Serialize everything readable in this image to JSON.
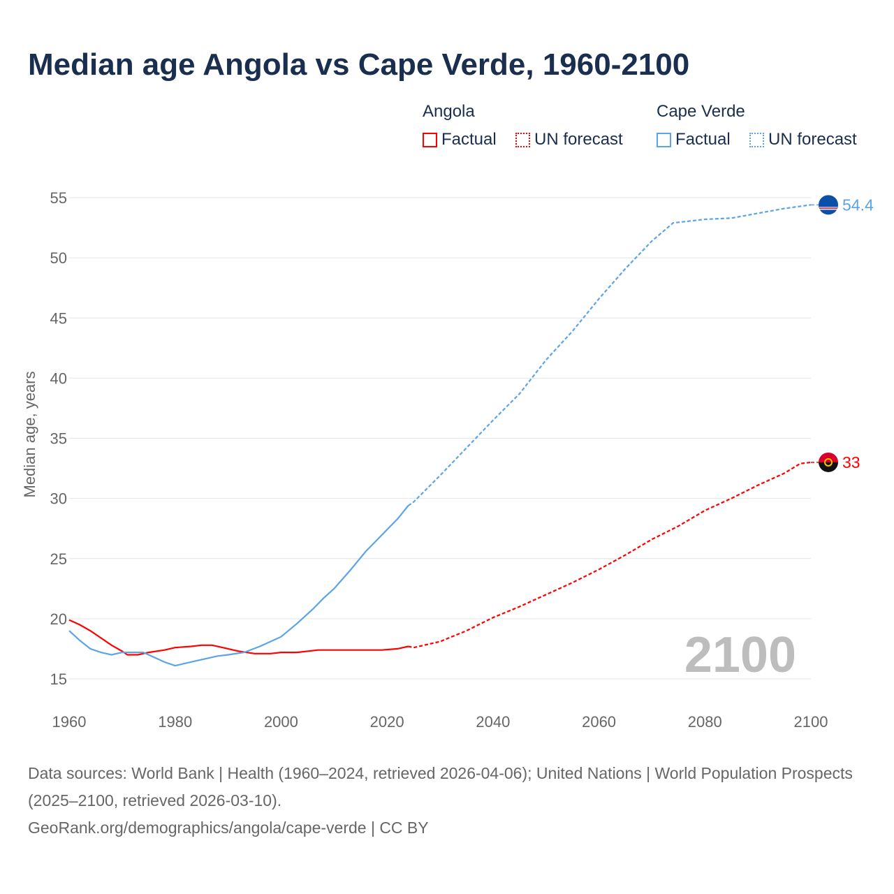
{
  "title": "Median age Angola vs Cape Verde, 1960-2100",
  "legend": {
    "angola": "Angola",
    "cape_verde": "Cape Verde",
    "factual": "Factual",
    "forecast": "UN forecast"
  },
  "year_label": "2100",
  "footer": [
    "Data sources: World Bank | Health (1960–2024, retrieved 2026-04-06); United Nations | World Population Prospects (2025–2100, retrieved 2026-03-10).",
    "GeoRank.org/demographics/angola/cape-verde | CC BY"
  ],
  "chart_data": {
    "type": "line",
    "title": "Median age Angola vs Cape Verde, 1960-2100",
    "xlabel": "",
    "ylabel": "Median age, years",
    "xlim": [
      1960,
      2100
    ],
    "ylim": [
      15,
      55
    ],
    "xticks": [
      1960,
      1980,
      2000,
      2020,
      2040,
      2060,
      2080,
      2100
    ],
    "yticks": [
      15,
      20,
      25,
      30,
      35,
      40,
      45,
      50,
      55
    ],
    "grid": true,
    "legend_position": "top-right",
    "series": [
      {
        "name": "Angola",
        "color": "#ff0000",
        "end_label": "33",
        "factual": [
          [
            1960,
            19.9
          ],
          [
            1962,
            19.5
          ],
          [
            1964,
            19.0
          ],
          [
            1966,
            18.4
          ],
          [
            1968,
            17.8
          ],
          [
            1970,
            17.3
          ],
          [
            1971,
            17.0
          ],
          [
            1973,
            17.0
          ],
          [
            1975,
            17.2
          ],
          [
            1978,
            17.4
          ],
          [
            1980,
            17.6
          ],
          [
            1983,
            17.7
          ],
          [
            1985,
            17.8
          ],
          [
            1987,
            17.8
          ],
          [
            1989,
            17.6
          ],
          [
            1992,
            17.3
          ],
          [
            1995,
            17.1
          ],
          [
            1998,
            17.1
          ],
          [
            2000,
            17.2
          ],
          [
            2003,
            17.2
          ],
          [
            2007,
            17.4
          ],
          [
            2010,
            17.4
          ],
          [
            2015,
            17.4
          ],
          [
            2019,
            17.4
          ],
          [
            2022,
            17.5
          ],
          [
            2024,
            17.7
          ]
        ],
        "forecast": [
          [
            2024,
            17.7
          ],
          [
            2025,
            17.6
          ],
          [
            2030,
            18.1
          ],
          [
            2035,
            19.0
          ],
          [
            2040,
            20.1
          ],
          [
            2045,
            21.0
          ],
          [
            2050,
            22.0
          ],
          [
            2055,
            23.0
          ],
          [
            2060,
            24.1
          ],
          [
            2065,
            25.3
          ],
          [
            2070,
            26.6
          ],
          [
            2075,
            27.7
          ],
          [
            2080,
            29.0
          ],
          [
            2085,
            30.0
          ],
          [
            2090,
            31.1
          ],
          [
            2095,
            32.1
          ],
          [
            2098,
            32.9
          ],
          [
            2100,
            33.0
          ]
        ]
      },
      {
        "name": "Cape Verde",
        "color": "#5ba4e8",
        "end_label": "54.4",
        "factual": [
          [
            1960,
            19.0
          ],
          [
            1962,
            18.2
          ],
          [
            1964,
            17.5
          ],
          [
            1966,
            17.2
          ],
          [
            1968,
            17.0
          ],
          [
            1970,
            17.2
          ],
          [
            1972,
            17.2
          ],
          [
            1974,
            17.2
          ],
          [
            1976,
            16.8
          ],
          [
            1978,
            16.4
          ],
          [
            1980,
            16.1
          ],
          [
            1982,
            16.3
          ],
          [
            1985,
            16.6
          ],
          [
            1988,
            16.9
          ],
          [
            1990,
            17.0
          ],
          [
            1993,
            17.2
          ],
          [
            1996,
            17.7
          ],
          [
            2000,
            18.5
          ],
          [
            2003,
            19.6
          ],
          [
            2006,
            20.8
          ],
          [
            2008,
            21.7
          ],
          [
            2010,
            22.5
          ],
          [
            2013,
            24.0
          ],
          [
            2016,
            25.6
          ],
          [
            2018,
            26.5
          ],
          [
            2020,
            27.4
          ],
          [
            2022,
            28.3
          ],
          [
            2024,
            29.4
          ]
        ],
        "forecast": [
          [
            2024,
            29.4
          ],
          [
            2025,
            29.7
          ],
          [
            2030,
            31.9
          ],
          [
            2035,
            34.2
          ],
          [
            2040,
            36.5
          ],
          [
            2045,
            38.7
          ],
          [
            2050,
            41.5
          ],
          [
            2055,
            43.9
          ],
          [
            2060,
            46.6
          ],
          [
            2065,
            49.1
          ],
          [
            2070,
            51.4
          ],
          [
            2074,
            52.9
          ],
          [
            2080,
            53.2
          ],
          [
            2085,
            53.3
          ],
          [
            2090,
            53.7
          ],
          [
            2095,
            54.1
          ],
          [
            2100,
            54.4
          ]
        ]
      }
    ]
  }
}
